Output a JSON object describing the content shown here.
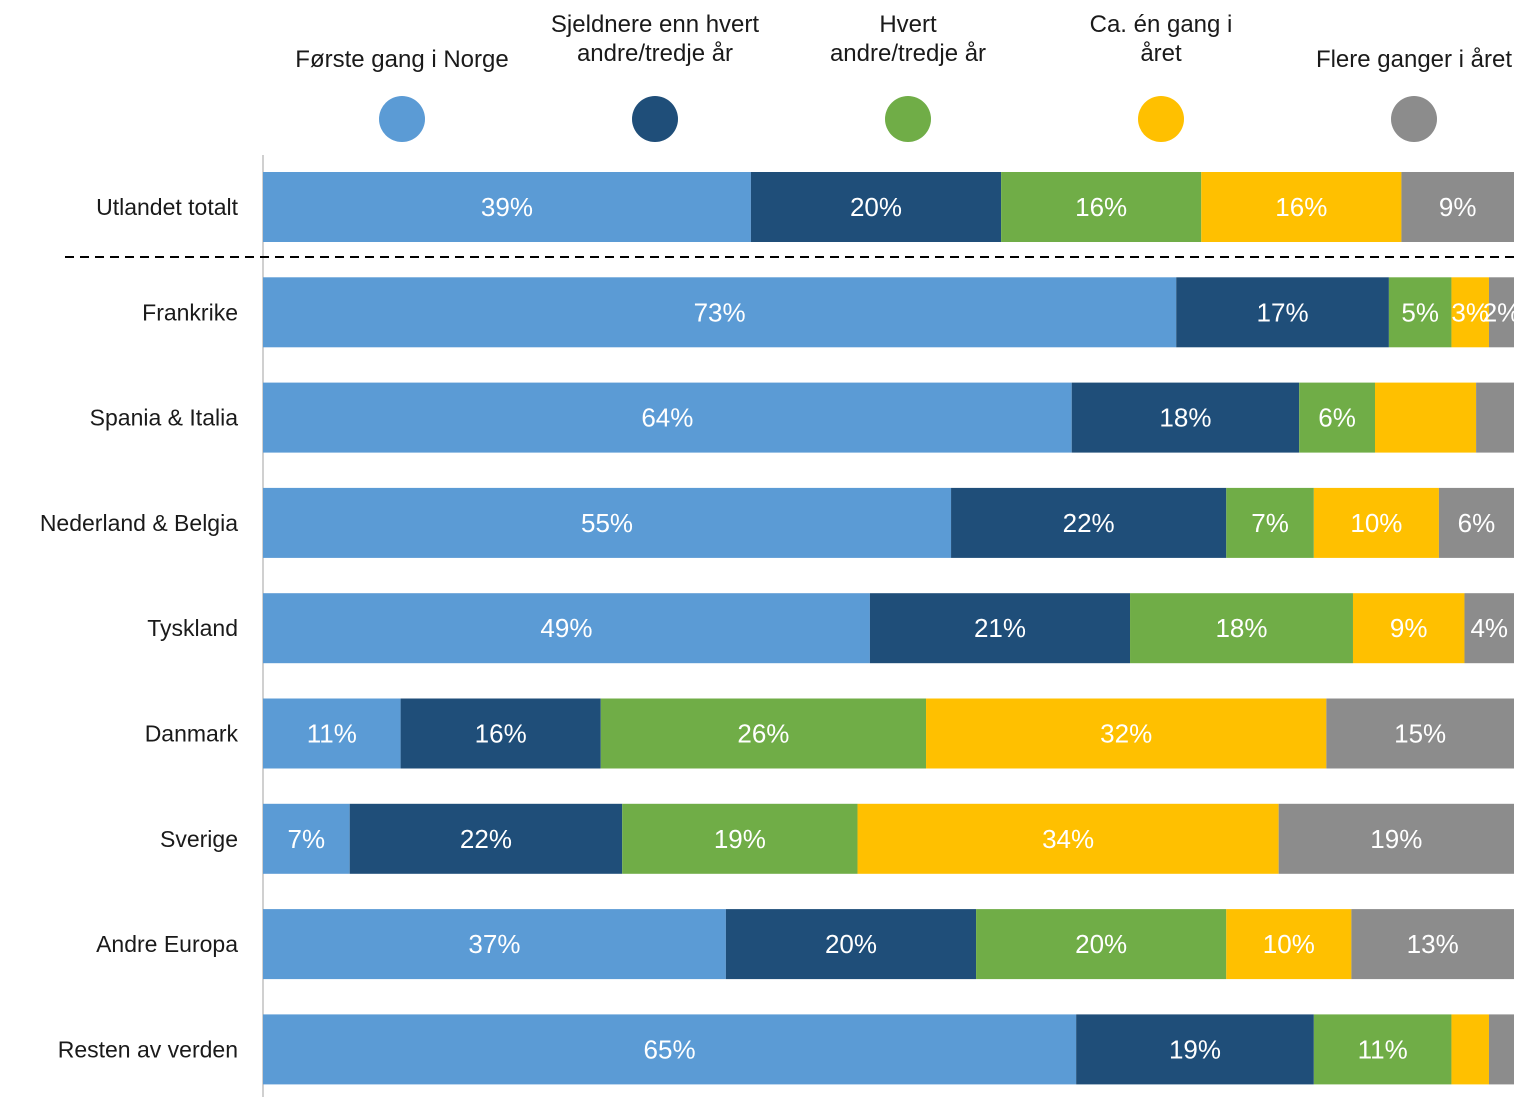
{
  "chart_data": {
    "type": "bar",
    "orientation": "horizontal",
    "stacked": true,
    "title": "",
    "legend_position": "top",
    "xlim": [
      0,
      100
    ],
    "grid": false,
    "colors": [
      "#5B9BD5",
      "#1F4E79",
      "#70AD47",
      "#FFC000",
      "#8C8C8C"
    ],
    "series_names": [
      "Første gang i Norge",
      "Sjeldnere enn hvert andre/tredje år",
      "Hvert andre/tredje år",
      "Ca. én gang i året",
      "Flere ganger i året"
    ],
    "legend_lines": [
      [
        "Første gang i Norge"
      ],
      [
        "Sjeldnere enn hvert",
        "andre/tredje år"
      ],
      [
        "Hvert",
        "andre/tredje år"
      ],
      [
        "Ca. én gang i",
        "året"
      ],
      [
        "Flere ganger i året"
      ]
    ],
    "categories": [
      "Utlandet totalt",
      "Frankrike",
      "Spania & Italia",
      "Nederland & Belgia",
      "Tyskland",
      "Danmark",
      "Sverige",
      "Andre Europa",
      "Resten av verden"
    ],
    "values": [
      [
        39,
        20,
        16,
        16,
        9
      ],
      [
        73,
        17,
        5,
        3,
        2
      ],
      [
        64,
        18,
        6,
        8,
        3
      ],
      [
        55,
        22,
        7,
        10,
        6
      ],
      [
        49,
        21,
        18,
        9,
        4
      ],
      [
        11,
        16,
        26,
        32,
        15
      ],
      [
        7,
        22,
        19,
        34,
        19
      ],
      [
        37,
        20,
        20,
        10,
        13
      ],
      [
        65,
        19,
        11,
        3,
        2
      ]
    ],
    "data_labels": [
      [
        "39%",
        "20%",
        "16%",
        "16%",
        "9%"
      ],
      [
        "73%",
        "17%",
        "5%",
        "3%",
        "2%"
      ],
      [
        "64%",
        "18%",
        "6%",
        "",
        ""
      ],
      [
        "55%",
        "22%",
        "7%",
        "10%",
        "6%"
      ],
      [
        "49%",
        "21%",
        "18%",
        "9%",
        "4%"
      ],
      [
        "11%",
        "16%",
        "26%",
        "32%",
        "15%"
      ],
      [
        "7%",
        "22%",
        "19%",
        "34%",
        "19%"
      ],
      [
        "37%",
        "20%",
        "20%",
        "10%",
        "13%"
      ],
      [
        "65%",
        "19%",
        "11%",
        "",
        ""
      ]
    ],
    "separator_after_index": 0
  }
}
